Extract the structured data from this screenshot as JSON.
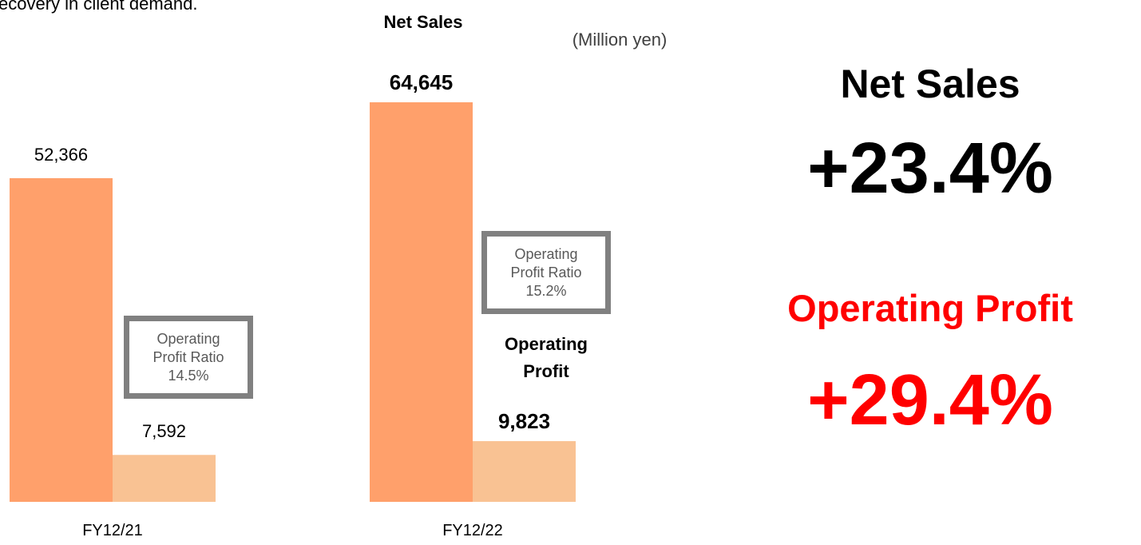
{
  "chart_data": {
    "type": "bar",
    "caption": "ecovery in client demand.",
    "unit": "(Million yen)",
    "categories": [
      "FY12/21",
      "FY12/22"
    ],
    "series": [
      {
        "name": "Net Sales",
        "color": "#FFA06B",
        "values": [
          52366,
          64645
        ],
        "value_labels": [
          "52,366",
          "64,645"
        ]
      },
      {
        "name": "Operating Profit",
        "color": "#F9C293",
        "values": [
          7592,
          9823
        ],
        "value_labels": [
          "7,592",
          "9,823"
        ]
      }
    ],
    "ratio_label": "Operating Profit Ratio",
    "ratio_values": [
      "14.5%",
      "15.2%"
    ],
    "highlights": [
      {
        "label": "Net Sales",
        "change": "+23.4%",
        "color": "#000000"
      },
      {
        "label": "Operating Profit",
        "change": "+29.4%",
        "color": "#FF0000"
      }
    ]
  }
}
